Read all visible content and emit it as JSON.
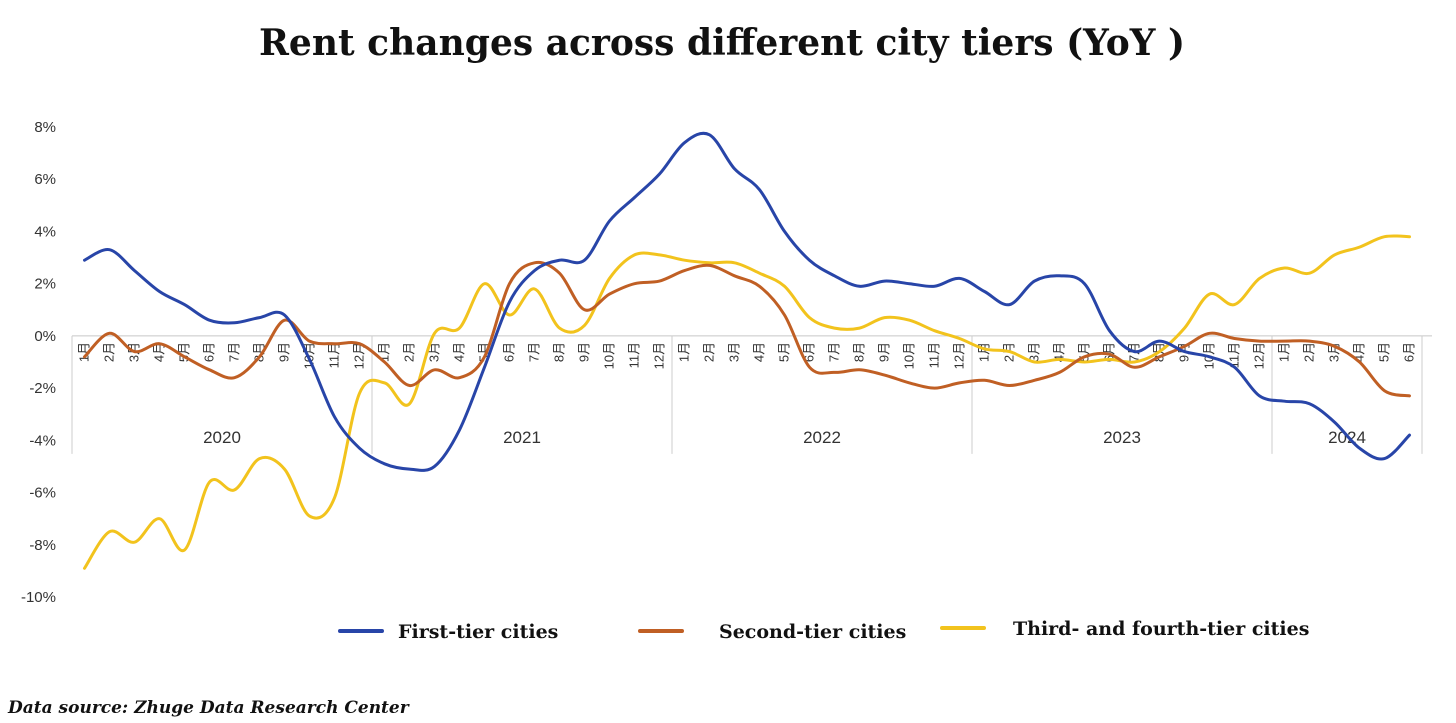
{
  "chart_data": {
    "type": "line",
    "title": "Rent changes across different city tiers (YoY )",
    "source": "Data source: Zhuge Data Research Center",
    "y_ticks": [
      "8%",
      "6%",
      "4%",
      "2%",
      "0%",
      "-2%",
      "-4%",
      "-6%",
      "-8%",
      "-10%"
    ],
    "ylim": [
      -10,
      8
    ],
    "months_2020_2023": [
      "1月",
      "2月",
      "3月",
      "4月",
      "5月",
      "6月",
      "7月",
      "8月",
      "9月",
      "10月",
      "11月",
      "12月"
    ],
    "months_2024": [
      "1月",
      "2月",
      "3月",
      "4月",
      "5月",
      "6月"
    ],
    "years": [
      "2020",
      "2021",
      "2022",
      "2023",
      "2024"
    ],
    "x": [
      "2020-01",
      "2020-02",
      "2020-03",
      "2020-04",
      "2020-05",
      "2020-06",
      "2020-07",
      "2020-08",
      "2020-09",
      "2020-10",
      "2020-11",
      "2020-12",
      "2021-01",
      "2021-02",
      "2021-03",
      "2021-04",
      "2021-05",
      "2021-06",
      "2021-07",
      "2021-08",
      "2021-09",
      "2021-10",
      "2021-11",
      "2021-12",
      "2022-01",
      "2022-02",
      "2022-03",
      "2022-04",
      "2022-05",
      "2022-06",
      "2022-07",
      "2022-08",
      "2022-09",
      "2022-10",
      "2022-11",
      "2022-12",
      "2023-01",
      "2023-02",
      "2023-03",
      "2023-04",
      "2023-05",
      "2023-06",
      "2023-07",
      "2023-08",
      "2023-09",
      "2023-10",
      "2023-11",
      "2023-12",
      "2024-01",
      "2024-02",
      "2024-03",
      "2024-04",
      "2024-05",
      "2024-06"
    ],
    "series": [
      {
        "name": "First-tier cities",
        "color": "#2845a8",
        "values": [
          2.9,
          3.3,
          2.5,
          1.7,
          1.2,
          0.6,
          0.5,
          0.7,
          0.8,
          -0.9,
          -3.1,
          -4.3,
          -4.9,
          -5.1,
          -5.0,
          -3.6,
          -1.2,
          1.3,
          2.5,
          2.9,
          2.9,
          4.4,
          5.3,
          6.2,
          7.4,
          7.7,
          6.4,
          5.6,
          4.0,
          2.9,
          2.3,
          1.9,
          2.1,
          2.0,
          1.9,
          2.2,
          1.7,
          1.2,
          2.1,
          2.3,
          2.0,
          0.2,
          -0.6,
          -0.2,
          -0.6,
          -0.8,
          -1.2,
          -2.3,
          -2.5,
          -2.6,
          -3.3,
          -4.3,
          -4.7,
          -3.8
        ]
      },
      {
        "name": "Second-tier cities",
        "color": "#c05f24",
        "values": [
          -0.8,
          0.1,
          -0.6,
          -0.3,
          -0.8,
          -1.3,
          -1.6,
          -0.8,
          0.6,
          -0.2,
          -0.3,
          -0.3,
          -1.0,
          -1.9,
          -1.3,
          -1.6,
          -0.8,
          2.0,
          2.8,
          2.4,
          1.0,
          1.6,
          2.0,
          2.1,
          2.5,
          2.7,
          2.3,
          1.9,
          0.8,
          -1.2,
          -1.4,
          -1.3,
          -1.5,
          -1.8,
          -2.0,
          -1.8,
          -1.7,
          -1.9,
          -1.7,
          -1.4,
          -0.8,
          -0.7,
          -1.2,
          -0.8,
          -0.4,
          0.1,
          -0.1,
          -0.2,
          -0.2,
          -0.2,
          -0.4,
          -1.0,
          -2.1,
          -2.3
        ]
      },
      {
        "name": "Third- and fourth-tier cities",
        "color": "#f2c31d",
        "values": [
          -8.9,
          -7.5,
          -7.9,
          -7.0,
          -8.2,
          -5.6,
          -5.9,
          -4.7,
          -5.1,
          -6.9,
          -6.2,
          -2.2,
          -1.8,
          -2.6,
          0.1,
          0.3,
          2.0,
          0.8,
          1.8,
          0.3,
          0.4,
          2.2,
          3.1,
          3.1,
          2.9,
          2.8,
          2.8,
          2.4,
          1.9,
          0.7,
          0.3,
          0.3,
          0.7,
          0.6,
          0.2,
          -0.1,
          -0.5,
          -0.6,
          -1.0,
          -0.9,
          -1.0,
          -0.9,
          -1.0,
          -0.6,
          0.3,
          1.6,
          1.2,
          2.2,
          2.6,
          2.4,
          3.1,
          3.4,
          3.8,
          3.8
        ]
      }
    ],
    "legend": {
      "position": "bottom",
      "entries": [
        "First-tier cities",
        "Second-tier cities",
        "Third- and fourth-tier cities"
      ]
    }
  }
}
